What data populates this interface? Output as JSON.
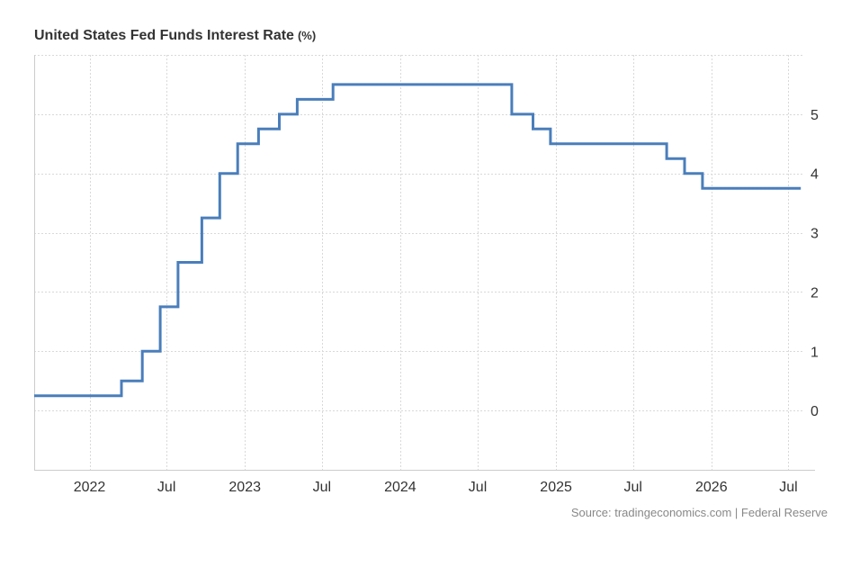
{
  "chart_data": {
    "type": "line",
    "title": "United States Fed Funds Interest Rate",
    "unit": "(%)",
    "xlabel": "",
    "ylabel": "",
    "x_ticks": [
      {
        "label": "2022",
        "date": "2022-01-01"
      },
      {
        "label": "Jul",
        "date": "2022-07-01"
      },
      {
        "label": "2023",
        "date": "2023-01-01"
      },
      {
        "label": "Jul",
        "date": "2023-07-01"
      },
      {
        "label": "2024",
        "date": "2024-01-01"
      },
      {
        "label": "Jul",
        "date": "2024-07-01"
      },
      {
        "label": "2025",
        "date": "2025-01-01"
      },
      {
        "label": "Jul",
        "date": "2025-07-01"
      },
      {
        "label": "2026",
        "date": "2026-01-01"
      },
      {
        "label": "Jul",
        "date": "2026-07-01"
      }
    ],
    "y_ticks": [
      0,
      1,
      2,
      3,
      4,
      5
    ],
    "xlim": [
      "2021-08-24",
      "2026-08-05"
    ],
    "ylim": [
      -1,
      6
    ],
    "grid": true,
    "y_axis_position": "right",
    "series": [
      {
        "color": "#4a7ebb",
        "step": true,
        "points": [
          {
            "date": "2021-08-24",
            "value": 0.25
          },
          {
            "date": "2022-03-17",
            "value": 0.5
          },
          {
            "date": "2022-05-05",
            "value": 1.0
          },
          {
            "date": "2022-06-16",
            "value": 1.75
          },
          {
            "date": "2022-07-28",
            "value": 2.5
          },
          {
            "date": "2022-09-22",
            "value": 3.25
          },
          {
            "date": "2022-11-03",
            "value": 4.0
          },
          {
            "date": "2022-12-15",
            "value": 4.5
          },
          {
            "date": "2023-02-02",
            "value": 4.75
          },
          {
            "date": "2023-03-23",
            "value": 5.0
          },
          {
            "date": "2023-05-04",
            "value": 5.25
          },
          {
            "date": "2023-07-27",
            "value": 5.5
          },
          {
            "date": "2024-09-19",
            "value": 5.0
          },
          {
            "date": "2024-11-08",
            "value": 4.75
          },
          {
            "date": "2024-12-19",
            "value": 4.5
          },
          {
            "date": "2025-09-18",
            "value": 4.25
          },
          {
            "date": "2025-10-30",
            "value": 4.0
          },
          {
            "date": "2025-12-11",
            "value": 3.75
          },
          {
            "date": "2026-07-30",
            "value": 3.75
          }
        ]
      }
    ]
  },
  "source": "Source: tradingeconomics.com | Federal Reserve"
}
